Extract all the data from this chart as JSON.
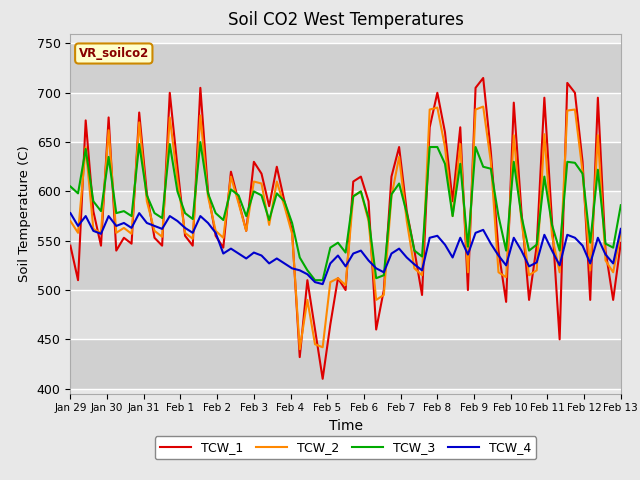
{
  "title": "Soil CO2 West Temperatures",
  "xlabel": "Time",
  "ylabel": "Soil Temperature (C)",
  "ylim": [
    395,
    760
  ],
  "yticks": [
    400,
    450,
    500,
    550,
    600,
    650,
    700,
    750
  ],
  "xtick_labels": [
    "Jan 29",
    "Jan 30",
    "Jan 31",
    "Feb 1",
    "Feb 2",
    "Feb 3",
    "Feb 4",
    "Feb 5",
    "Feb 6",
    "Feb 7",
    "Feb 8",
    "Feb 9",
    "Feb 10",
    "Feb 11",
    "Feb 12",
    "Feb 13"
  ],
  "legend_label": "VR_soilco2",
  "series": {
    "TCW_1": {
      "color": "#dd0000",
      "y": [
        545,
        510,
        672,
        580,
        545,
        675,
        540,
        553,
        547,
        680,
        598,
        553,
        545,
        700,
        625,
        555,
        545,
        705,
        600,
        555,
        543,
        620,
        590,
        560,
        630,
        618,
        585,
        625,
        590,
        560,
        432,
        510,
        460,
        410,
        465,
        512,
        500,
        610,
        615,
        590,
        460,
        500,
        615,
        645,
        580,
        540,
        495,
        665,
        700,
        660,
        590,
        665,
        500,
        705,
        715,
        640,
        540,
        488,
        690,
        580,
        490,
        545,
        695,
        570,
        450,
        710,
        700,
        630,
        490,
        695,
        540,
        490,
        548
      ]
    },
    "TCW_2": {
      "color": "#ff8800",
      "y": [
        570,
        558,
        645,
        562,
        558,
        662,
        558,
        563,
        557,
        670,
        590,
        560,
        554,
        675,
        612,
        558,
        552,
        677,
        595,
        560,
        553,
        615,
        588,
        560,
        610,
        608,
        566,
        610,
        585,
        557,
        440,
        490,
        445,
        442,
        508,
        512,
        505,
        595,
        600,
        570,
        490,
        495,
        595,
        635,
        570,
        522,
        515,
        683,
        685,
        645,
        575,
        648,
        518,
        683,
        686,
        630,
        518,
        513,
        657,
        570,
        515,
        520,
        658,
        555,
        518,
        682,
        683,
        620,
        520,
        657,
        530,
        518,
        558
      ]
    },
    "TCW_3": {
      "color": "#00aa00",
      "y": [
        605,
        598,
        643,
        590,
        580,
        635,
        578,
        580,
        575,
        648,
        596,
        578,
        573,
        648,
        600,
        578,
        572,
        650,
        598,
        578,
        571,
        602,
        596,
        575,
        600,
        596,
        571,
        598,
        590,
        568,
        533,
        520,
        510,
        510,
        543,
        548,
        538,
        595,
        600,
        573,
        512,
        515,
        597,
        608,
        578,
        540,
        534,
        645,
        645,
        628,
        575,
        628,
        544,
        645,
        625,
        623,
        575,
        540,
        630,
        575,
        540,
        546,
        615,
        566,
        540,
        630,
        629,
        618,
        548,
        622,
        547,
        543,
        586
      ]
    },
    "TCW_4": {
      "color": "#0000cc",
      "y": [
        578,
        565,
        575,
        560,
        557,
        575,
        565,
        568,
        563,
        578,
        568,
        565,
        562,
        575,
        570,
        563,
        558,
        575,
        568,
        558,
        537,
        542,
        537,
        532,
        538,
        535,
        527,
        532,
        527,
        522,
        520,
        516,
        508,
        506,
        527,
        535,
        524,
        537,
        540,
        530,
        522,
        518,
        537,
        542,
        533,
        526,
        520,
        553,
        555,
        546,
        533,
        553,
        536,
        558,
        561,
        547,
        535,
        525,
        553,
        540,
        524,
        528,
        556,
        540,
        525,
        556,
        553,
        545,
        527,
        553,
        536,
        527,
        562
      ]
    }
  }
}
